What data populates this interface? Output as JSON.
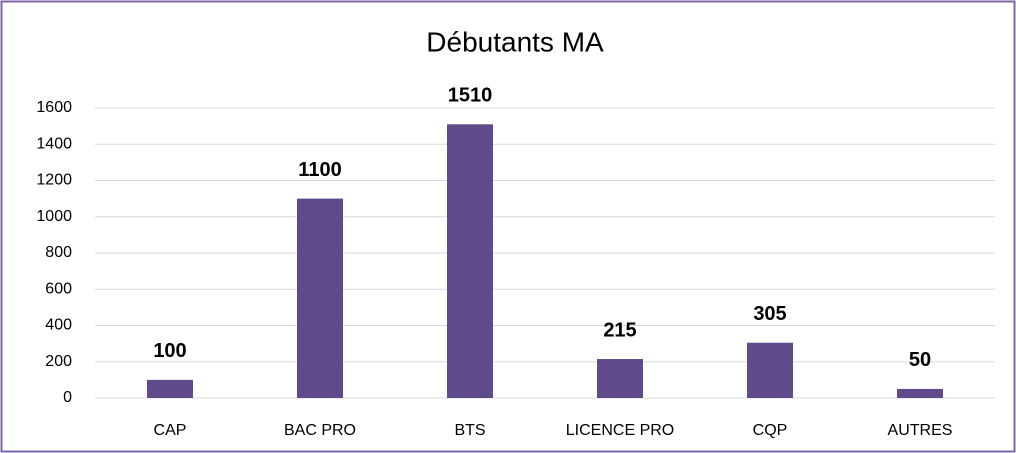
{
  "chart_data": {
    "type": "bar",
    "title": "Débutants MA",
    "categories": [
      "CAP",
      "BAC PRO",
      "BTS",
      "LICENCE PRO",
      "CQP",
      "AUTRES"
    ],
    "values": [
      100,
      1100,
      1510,
      215,
      305,
      50
    ],
    "color": "#5f4b8b",
    "ylim": [
      0,
      1600
    ],
    "yticks": [
      0,
      200,
      400,
      600,
      800,
      1000,
      1200,
      1400,
      1600
    ],
    "grid": true
  }
}
